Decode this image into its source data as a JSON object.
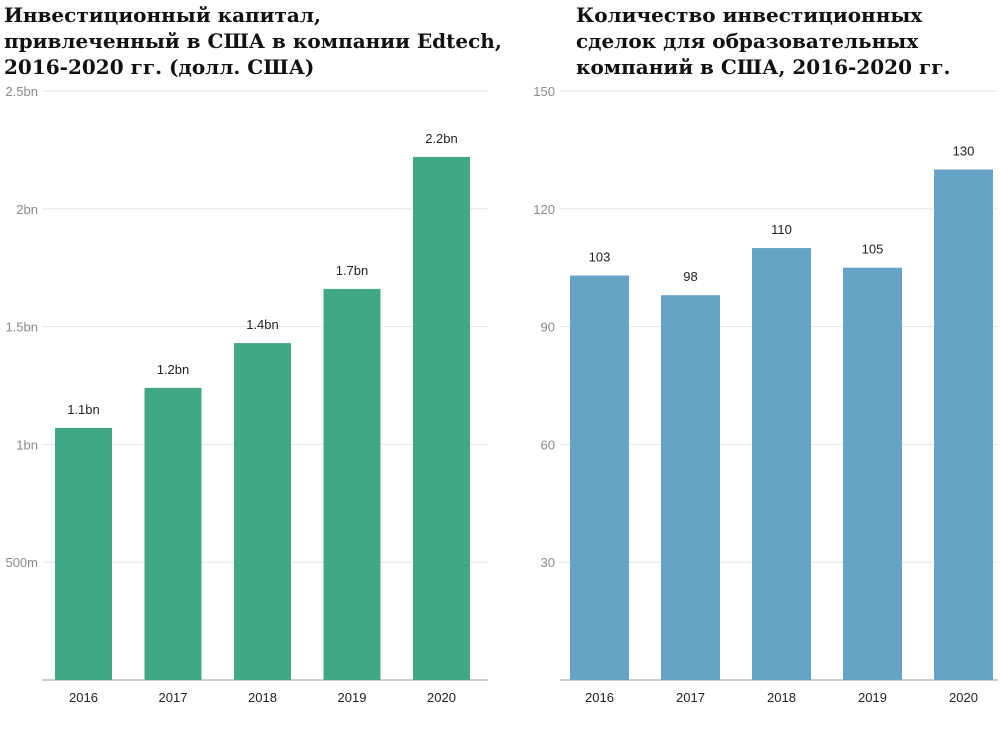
{
  "chart_data": [
    {
      "type": "bar",
      "title": "Инвестиционный капитал, привлеченный в США в компании Edtech, 2016-2020 гг. (долл. США)",
      "title_lines": [
        "Инвестиционный капитал,",
        "привлеченный в США в компании Edtech,",
        "2016-2020 гг. (долл. США)"
      ],
      "categories": [
        "2016",
        "2017",
        "2018",
        "2019",
        "2020"
      ],
      "values": [
        1.07,
        1.24,
        1.43,
        1.66,
        2.22
      ],
      "data_labels": [
        "1.1bn",
        "1.2bn",
        "1.4bn",
        "1.7bn",
        "2.2bn"
      ],
      "yticks": [
        0.5,
        1,
        1.5,
        2,
        2.5
      ],
      "ytick_labels": [
        "500m",
        "1bn",
        "1.5bn",
        "2bn",
        "2.5bn"
      ],
      "ylim": [
        0,
        2.5
      ],
      "grid": true,
      "color": "#41a886"
    },
    {
      "type": "bar",
      "title": "Количество инвестиционных сделок для образовательных компаний в США, 2016-2020 гг.",
      "title_lines": [
        "Количество инвестиционных",
        "сделок для образовательных",
        "компаний в США, 2016-2020 гг."
      ],
      "categories": [
        "2016",
        "2017",
        "2018",
        "2019",
        "2020"
      ],
      "values": [
        103,
        98,
        110,
        105,
        130
      ],
      "data_labels": [
        "103",
        "98",
        "110",
        "105",
        "130"
      ],
      "yticks": [
        30,
        60,
        90,
        120,
        150
      ],
      "ytick_labels": [
        "30",
        "60",
        "90",
        "120",
        "150"
      ],
      "ylim": [
        0,
        150
      ],
      "grid": true,
      "color": "#67a2c7"
    }
  ]
}
